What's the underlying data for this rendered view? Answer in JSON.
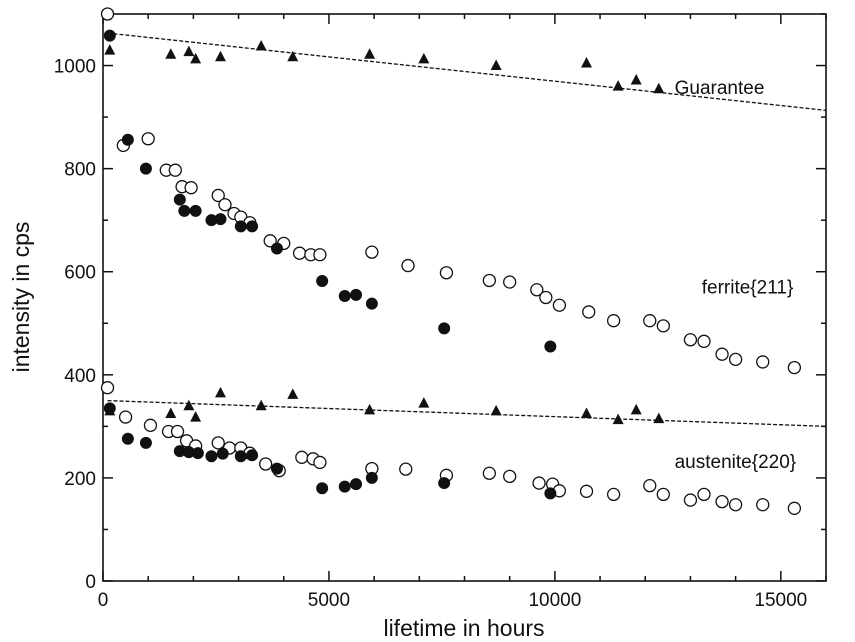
{
  "chart_data": {
    "type": "scatter",
    "title": "",
    "xlabel": "lifetime in hours",
    "ylabel": "intensity in cps",
    "xlim": [
      0,
      16000
    ],
    "ylim": [
      0,
      1100
    ],
    "x_ticks": [
      {
        "value": 0,
        "label": "0"
      },
      {
        "value": 5000,
        "label": "5000"
      },
      {
        "value": 10000,
        "label": "10000"
      },
      {
        "value": 15000,
        "label": "15000"
      }
    ],
    "y_ticks": [
      {
        "value": 0,
        "label": "0"
      },
      {
        "value": 200,
        "label": "200"
      },
      {
        "value": 400,
        "label": "400"
      },
      {
        "value": 600,
        "label": "600"
      },
      {
        "value": 800,
        "label": "800"
      },
      {
        "value": 1000,
        "label": "1000"
      }
    ],
    "grid": false,
    "annotations": [
      {
        "text": "Guarantee",
        "x": 12650,
        "y": 945
      },
      {
        "text": "ferrite{211}",
        "x": 13250,
        "y": 558
      },
      {
        "text": "austenite{220}",
        "x": 12650,
        "y": 219
      }
    ],
    "series": [
      {
        "marker": "open-circle",
        "points": [
          [
            100,
            1100
          ],
          [
            450,
            845
          ],
          [
            1000,
            858
          ],
          [
            1400,
            797
          ],
          [
            1600,
            797
          ],
          [
            1750,
            765
          ],
          [
            1950,
            763
          ],
          [
            2550,
            748
          ],
          [
            2700,
            730
          ],
          [
            2900,
            713
          ],
          [
            3050,
            706
          ],
          [
            3250,
            695
          ],
          [
            3700,
            660
          ],
          [
            4000,
            655
          ],
          [
            4350,
            636
          ],
          [
            4600,
            633
          ],
          [
            4800,
            633
          ],
          [
            5950,
            638
          ],
          [
            6750,
            612
          ],
          [
            7600,
            598
          ],
          [
            8550,
            583
          ],
          [
            9000,
            580
          ],
          [
            9600,
            565
          ],
          [
            9800,
            550
          ],
          [
            10100,
            535
          ],
          [
            10750,
            522
          ],
          [
            11300,
            505
          ],
          [
            12100,
            505
          ],
          [
            12400,
            495
          ],
          [
            13000,
            468
          ],
          [
            13300,
            465
          ],
          [
            13700,
            440
          ],
          [
            14000,
            430
          ],
          [
            14600,
            425
          ],
          [
            15300,
            414
          ],
          [
            100,
            375
          ],
          [
            500,
            318
          ],
          [
            1050,
            302
          ],
          [
            1450,
            290
          ],
          [
            1650,
            290
          ],
          [
            1850,
            272
          ],
          [
            2050,
            262
          ],
          [
            2550,
            268
          ],
          [
            2800,
            258
          ],
          [
            3050,
            258
          ],
          [
            3250,
            248
          ],
          [
            3600,
            227
          ],
          [
            3900,
            214
          ],
          [
            4400,
            240
          ],
          [
            4650,
            237
          ],
          [
            4800,
            230
          ],
          [
            5950,
            218
          ],
          [
            6700,
            217
          ],
          [
            7600,
            205
          ],
          [
            8550,
            209
          ],
          [
            9000,
            203
          ],
          [
            9650,
            190
          ],
          [
            9950,
            188
          ],
          [
            10100,
            175
          ],
          [
            10700,
            174
          ],
          [
            11300,
            168
          ],
          [
            12100,
            185
          ],
          [
            12400,
            168
          ],
          [
            13000,
            157
          ],
          [
            13300,
            168
          ],
          [
            13700,
            154
          ],
          [
            14000,
            148
          ],
          [
            14600,
            148
          ],
          [
            15300,
            141
          ]
        ]
      },
      {
        "marker": "filled-circle",
        "points": [
          [
            150,
            1058
          ],
          [
            550,
            856
          ],
          [
            950,
            800
          ],
          [
            1700,
            740
          ],
          [
            1800,
            718
          ],
          [
            2050,
            718
          ],
          [
            2400,
            700
          ],
          [
            2600,
            702
          ],
          [
            3050,
            688
          ],
          [
            3300,
            688
          ],
          [
            3850,
            645
          ],
          [
            4850,
            582
          ],
          [
            5350,
            553
          ],
          [
            5600,
            555
          ],
          [
            5950,
            538
          ],
          [
            7550,
            490
          ],
          [
            9900,
            455
          ],
          [
            150,
            335
          ],
          [
            550,
            276
          ],
          [
            950,
            268
          ],
          [
            1700,
            252
          ],
          [
            1900,
            250
          ],
          [
            2100,
            248
          ],
          [
            2400,
            242
          ],
          [
            2650,
            247
          ],
          [
            3050,
            242
          ],
          [
            3300,
            244
          ],
          [
            3850,
            218
          ],
          [
            4850,
            180
          ],
          [
            5350,
            183
          ],
          [
            5600,
            188
          ],
          [
            5950,
            200
          ],
          [
            7550,
            190
          ],
          [
            9900,
            170
          ]
        ]
      },
      {
        "marker": "filled-triangle",
        "points": [
          [
            150,
            1030
          ],
          [
            1500,
            1022
          ],
          [
            1900,
            1027
          ],
          [
            2050,
            1013
          ],
          [
            2600,
            1017
          ],
          [
            3500,
            1038
          ],
          [
            4200,
            1017
          ],
          [
            5900,
            1022
          ],
          [
            7100,
            1013
          ],
          [
            8700,
            1000
          ],
          [
            10700,
            1005
          ],
          [
            11400,
            960
          ],
          [
            11800,
            972
          ],
          [
            12300,
            955
          ],
          [
            150,
            330
          ],
          [
            1500,
            325
          ],
          [
            1900,
            340
          ],
          [
            2050,
            318
          ],
          [
            2600,
            365
          ],
          [
            3500,
            340
          ],
          [
            4200,
            362
          ],
          [
            5900,
            332
          ],
          [
            7100,
            345
          ],
          [
            8700,
            330
          ],
          [
            10700,
            325
          ],
          [
            11400,
            313
          ],
          [
            11800,
            332
          ],
          [
            12300,
            315
          ]
        ]
      },
      {
        "marker": "dashed-line",
        "points": [
          [
            100,
            1063
          ],
          [
            16000,
            913
          ]
        ]
      },
      {
        "marker": "dashed-line",
        "points": [
          [
            100,
            350
          ],
          [
            16000,
            300
          ]
        ]
      }
    ]
  }
}
